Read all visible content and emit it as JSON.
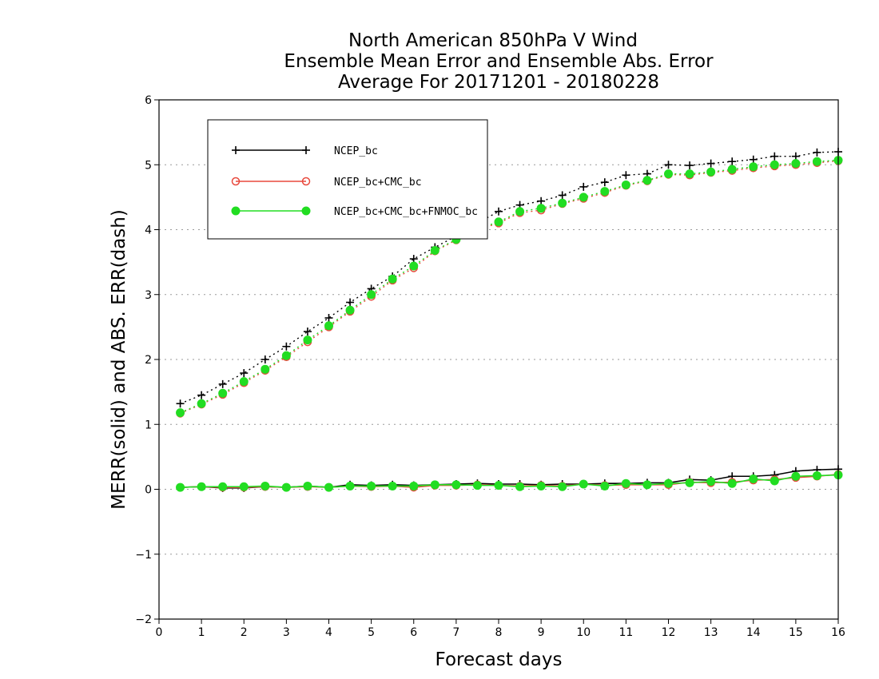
{
  "chart_data": {
    "type": "line",
    "title_lines": [
      "North American 850hPa V Wind",
      "Ensemble Mean Error and Ensemble Abs. Error",
      "Average For 20171201 - 20180228"
    ],
    "xlabel": "Forecast days",
    "ylabel": "MERR(solid) and ABS. ERR(dash)",
    "xlim": [
      0,
      16
    ],
    "ylim": [
      -2,
      6
    ],
    "x_ticks": [
      0,
      1,
      2,
      3,
      4,
      5,
      6,
      7,
      8,
      9,
      10,
      11,
      12,
      13,
      14,
      15,
      16
    ],
    "y_ticks": [
      -2,
      -1,
      0,
      1,
      2,
      3,
      4,
      5,
      6
    ],
    "y_tick_labels": [
      "−2",
      "−1",
      "0",
      "1",
      "2",
      "3",
      "4",
      "5",
      "6"
    ],
    "grid": "horizontal dotted",
    "legend_position": "top-left",
    "x": [
      0.5,
      1,
      1.5,
      2,
      2.5,
      3,
      3.5,
      4,
      4.5,
      5,
      5.5,
      6,
      6.5,
      7,
      7.5,
      8,
      8.5,
      9,
      9.5,
      10,
      10.5,
      11,
      11.5,
      12,
      12.5,
      13,
      13.5,
      14,
      14.5,
      15,
      15.5,
      16
    ],
    "series": [
      {
        "name": "NCEP_bc",
        "color": "#000000",
        "marker": "plus",
        "mean_error": [
          0.03,
          0.04,
          0.02,
          0.02,
          0.04,
          0.03,
          0.05,
          0.03,
          0.07,
          0.06,
          0.07,
          0.06,
          0.07,
          0.08,
          0.09,
          0.08,
          0.08,
          0.07,
          0.08,
          0.08,
          0.09,
          0.09,
          0.1,
          0.1,
          0.15,
          0.14,
          0.2,
          0.2,
          0.22,
          0.28,
          0.3,
          0.31
        ],
        "abs_error": [
          1.32,
          1.45,
          1.62,
          1.79,
          2.0,
          2.2,
          2.43,
          2.64,
          2.88,
          3.09,
          3.28,
          3.55,
          3.73,
          3.9,
          4.1,
          4.28,
          4.38,
          4.44,
          4.53,
          4.66,
          4.73,
          4.84,
          4.86,
          5.0,
          4.99,
          5.02,
          5.05,
          5.08,
          5.13,
          5.13,
          5.19,
          5.2
        ]
      },
      {
        "name": "NCEP_bc+CMC_bc",
        "color": "#e8493d",
        "marker": "open-circle",
        "mean_error": [
          0.03,
          0.04,
          0.03,
          0.03,
          0.04,
          0.03,
          0.04,
          0.03,
          0.05,
          0.04,
          0.05,
          0.03,
          0.06,
          0.06,
          0.07,
          0.06,
          0.05,
          0.06,
          0.05,
          0.08,
          0.06,
          0.07,
          0.07,
          0.07,
          0.11,
          0.1,
          0.11,
          0.14,
          0.15,
          0.18,
          0.2,
          0.23
        ],
        "abs_error": [
          1.17,
          1.31,
          1.46,
          1.64,
          1.83,
          2.04,
          2.27,
          2.5,
          2.74,
          2.97,
          3.22,
          3.41,
          3.67,
          3.84,
          4.0,
          4.1,
          4.26,
          4.3,
          4.4,
          4.48,
          4.57,
          4.68,
          4.75,
          4.85,
          4.84,
          4.88,
          4.91,
          4.95,
          4.98,
          5.0,
          5.03,
          5.06
        ]
      },
      {
        "name": "NCEP_bc+CMC_bc+FNMOC_bc",
        "color": "#22dd22",
        "marker": "filled-circle",
        "mean_error": [
          0.03,
          0.04,
          0.04,
          0.04,
          0.05,
          0.03,
          0.05,
          0.03,
          0.05,
          0.05,
          0.05,
          0.05,
          0.07,
          0.07,
          0.06,
          0.06,
          0.04,
          0.05,
          0.04,
          0.08,
          0.05,
          0.09,
          0.07,
          0.09,
          0.1,
          0.12,
          0.09,
          0.16,
          0.13,
          0.2,
          0.21,
          0.22
        ],
        "abs_error": [
          1.18,
          1.32,
          1.48,
          1.66,
          1.85,
          2.06,
          2.3,
          2.52,
          2.76,
          3.0,
          3.24,
          3.44,
          3.68,
          3.85,
          4.01,
          4.12,
          4.28,
          4.33,
          4.41,
          4.5,
          4.59,
          4.69,
          4.76,
          4.86,
          4.86,
          4.89,
          4.93,
          4.97,
          5.0,
          5.02,
          5.05,
          5.07
        ]
      }
    ]
  }
}
